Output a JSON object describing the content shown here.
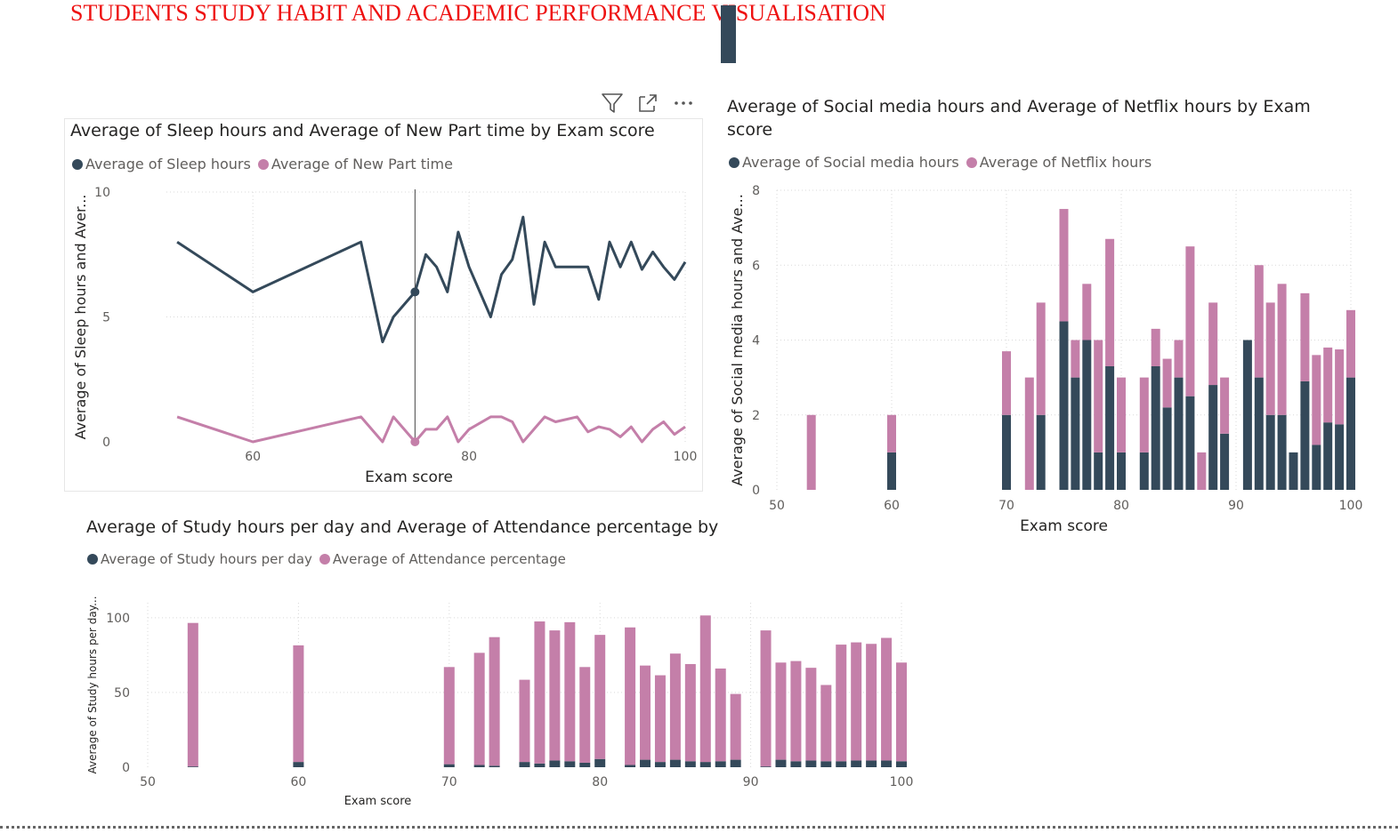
{
  "page": {
    "title": "STUDENTS STUDY HABIT AND ACADEMIC PERFORMANCE VISUALISATION"
  },
  "colors": {
    "dark": "#34495a",
    "pink": "#c47fa9",
    "grid": "#d9d9d9",
    "axis_text": "#605e5c"
  },
  "icons": [
    "filter-icon",
    "focus-mode-icon",
    "more-options-icon"
  ],
  "chart_data": [
    {
      "id": "sleep",
      "type": "line",
      "title": "Average of Sleep hours and Average of New Part time by Exam score",
      "xlabel": "Exam score",
      "ylabel": "Average of Sleep hours and Aver...",
      "xlim": [
        52,
        100
      ],
      "ylim": [
        0,
        10
      ],
      "xticks": [
        60,
        80,
        100
      ],
      "yticks": [
        0,
        5,
        10
      ],
      "legend_position": "top-left",
      "series": [
        {
          "name": "Average of Sleep hours",
          "color": "#34495a",
          "x": [
            53,
            60,
            70,
            72,
            73,
            75,
            76,
            77,
            78,
            79,
            80,
            82,
            83,
            84,
            85,
            86,
            87,
            88,
            90,
            91,
            92,
            93,
            94,
            95,
            96,
            97,
            98,
            99,
            100
          ],
          "y": [
            8,
            6,
            8,
            4,
            5,
            6,
            7.5,
            7,
            6,
            8.4,
            7,
            5,
            6.7,
            7.3,
            9,
            5.5,
            8,
            7,
            7,
            7,
            5.7,
            8,
            7,
            8,
            6.9,
            7.6,
            7,
            6.5,
            7.2
          ]
        },
        {
          "name": "Average of New Part time",
          "color": "#c47fa9",
          "x": [
            53,
            60,
            70,
            72,
            73,
            75,
            76,
            77,
            78,
            79,
            80,
            82,
            83,
            84,
            85,
            86,
            87,
            88,
            90,
            91,
            92,
            93,
            94,
            95,
            96,
            97,
            98,
            99,
            100
          ],
          "y": [
            1,
            0,
            1,
            0,
            1,
            0,
            0.5,
            0.5,
            1,
            0,
            0.5,
            1,
            1,
            0.8,
            0,
            0.5,
            1,
            0.8,
            1,
            0.4,
            0.6,
            0.5,
            0.2,
            0.6,
            0,
            0.5,
            0.8,
            0.3,
            0.6
          ]
        }
      ],
      "highlight": {
        "x": 75,
        "y": 6
      }
    },
    {
      "id": "social",
      "type": "bar",
      "stacked": true,
      "title_lines": [
        "Average of Social media hours and Average of Netflix hours by Exam",
        "score"
      ],
      "xlabel": "Exam score",
      "ylabel": "Average of Social media hours and Ave...",
      "xlim": [
        50,
        100
      ],
      "ylim": [
        0,
        8
      ],
      "xticks": [
        50,
        60,
        70,
        80,
        90,
        100
      ],
      "yticks": [
        0,
        2,
        4,
        6,
        8
      ],
      "legend_position": "top-left",
      "x": [
        53,
        60,
        70,
        72,
        73,
        75,
        76,
        77,
        78,
        79,
        80,
        82,
        83,
        84,
        85,
        86,
        87,
        88,
        89,
        91,
        92,
        93,
        94,
        95,
        96,
        97,
        98,
        99,
        100
      ],
      "series": [
        {
          "name": "Average of Social media hours",
          "color": "#34495a",
          "values": [
            0,
            1,
            2,
            0,
            2,
            4.5,
            3,
            4,
            1,
            3.3,
            1,
            1,
            3.3,
            2.2,
            3,
            2.5,
            0,
            2.8,
            1.5,
            4,
            3,
            2,
            2,
            1,
            2.9,
            1.2,
            1.8,
            1.75,
            3
          ]
        },
        {
          "name": "Average of Netflix hours",
          "color": "#c47fa9",
          "values": [
            2,
            1,
            1.7,
            3,
            3,
            3,
            1,
            1.5,
            3,
            3.4,
            2,
            2,
            1,
            1.3,
            1,
            4,
            1,
            2.2,
            1.5,
            0,
            3,
            3,
            3.5,
            0,
            2.35,
            2.4,
            2,
            2,
            1.8
          ]
        }
      ]
    },
    {
      "id": "study",
      "type": "bar",
      "stacked": true,
      "title": "Average of Study hours per day and Average of Attendance percentage by",
      "xlabel": "Exam score",
      "ylabel": "Average of Study hours per day...",
      "xlim": [
        50,
        100
      ],
      "ylim": [
        0,
        110
      ],
      "xticks": [
        50,
        60,
        70,
        80,
        90,
        100
      ],
      "yticks": [
        0,
        50,
        100
      ],
      "legend_position": "top-left",
      "x": [
        53,
        60,
        70,
        72,
        73,
        75,
        76,
        77,
        78,
        79,
        80,
        82,
        83,
        84,
        85,
        86,
        87,
        88,
        89,
        91,
        92,
        93,
        94,
        95,
        96,
        97,
        98,
        99,
        100
      ],
      "series": [
        {
          "name": "Average of Study hours per day",
          "color": "#34495a",
          "values": [
            0.5,
            3.5,
            2,
            1.5,
            1,
            3.5,
            2.5,
            4.5,
            4,
            3,
            5.5,
            1.5,
            5,
            3.5,
            5,
            4,
            3.5,
            4,
            5,
            0.5,
            5,
            4,
            4.5,
            4,
            4,
            4.5,
            4.5,
            4.5,
            4
          ]
        },
        {
          "name": "Average of Attendance percentage",
          "color": "#c47fa9",
          "values": [
            96,
            78,
            65,
            75,
            86,
            55,
            95,
            87,
            93,
            64,
            83,
            92,
            63,
            58,
            71,
            65,
            98,
            62,
            44,
            91,
            65,
            67,
            62,
            51,
            78,
            79,
            78,
            82,
            66
          ]
        }
      ]
    }
  ]
}
